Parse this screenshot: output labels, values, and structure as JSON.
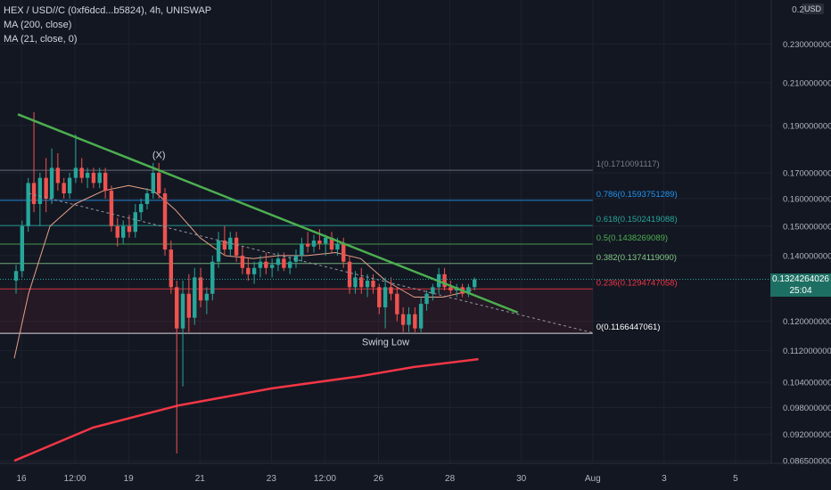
{
  "legend": {
    "symbol": "HEX / USD//C (0xf6dcd...b5824), 4h, UNISWAP",
    "ma200": "MA (200, close)",
    "ma21": "MA (21, close, 0)"
  },
  "axis": {
    "currency": "USD",
    "top_label": "0.2",
    "last_price": "0.1324264026",
    "countdown": "25:04"
  },
  "colors": {
    "background": "#131722",
    "up": "#26a69a",
    "down": "#ef5350",
    "trendline": "#4caf50",
    "ma200": "#f23645",
    "ma21": "#e8a08a"
  },
  "chart_data": {
    "type": "candlestick",
    "title": "HEX / USD//C (0xf6dcd...b5824), 4h, UNISWAP",
    "y_scale": "log",
    "ylim": [
      0.086,
      0.255
    ],
    "y_ticks": [
      0.23,
      0.21,
      0.19,
      0.17,
      0.16,
      0.15,
      0.14,
      0.12,
      0.112,
      0.104,
      0.098,
      0.092,
      0.0865
    ],
    "y_tick_labels": [
      "0.2300000000",
      "0.2100000000",
      "0.1900000000",
      "0.1700000000",
      "0.1600000000",
      "0.1500000000",
      "0.1400000000",
      "0.1200000000",
      "0.1120000000",
      "0.1040000000",
      "0.0980000000",
      "0.0920000000",
      "0.0865000000"
    ],
    "x_ticks": [
      {
        "label": "16",
        "day": 16
      },
      {
        "label": "12:00",
        "day": 17.5
      },
      {
        "label": "19",
        "day": 19
      },
      {
        "label": "21",
        "day": 21
      },
      {
        "label": "23",
        "day": 23
      },
      {
        "label": "12:00",
        "day": 24.5
      },
      {
        "label": "26",
        "day": 26
      },
      {
        "label": "28",
        "day": 28
      },
      {
        "label": "30",
        "day": 30
      },
      {
        "label": "Aug",
        "day": 32
      },
      {
        "label": "3",
        "day": 34
      },
      {
        "label": "5",
        "day": 36
      }
    ],
    "fib_levels": [
      {
        "label": "1(0.1710091117)",
        "value": 0.1710091117,
        "color": "#787b86"
      },
      {
        "label": "0.786(0.1593751289)",
        "value": 0.1593751289,
        "color": "#2196f3"
      },
      {
        "label": "0.618(0.1502419088)",
        "value": 0.1502419088,
        "color": "#26a69a"
      },
      {
        "label": "0.5(0.1438269089)",
        "value": 0.1438269089,
        "color": "#4caf50"
      },
      {
        "label": "0.382(0.1374119090)",
        "value": 0.137411909,
        "color": "#81c784"
      },
      {
        "label": "0.236(0.1294747058)",
        "value": 0.1294747058,
        "color": "#f23645"
      },
      {
        "label": "0(0.1166447061)",
        "value": 0.1166447061,
        "color": "#ffffff"
      }
    ],
    "annotations": [
      {
        "text": "(X)",
        "day": 19.85,
        "value": 0.176
      },
      {
        "text": "Swing Low",
        "day": 26.2,
        "value": 0.1135
      }
    ],
    "trendline": {
      "start": {
        "day": 15.9,
        "value": 0.195
      },
      "end": {
        "day": 29.9,
        "value": 0.1225
      }
    },
    "dotted_trend": {
      "start": {
        "day": 16.2,
        "value": 0.162
      },
      "end": {
        "day": 32.0,
        "value": 0.1168
      }
    },
    "ma200_points": [
      {
        "day": 15.8,
        "value": 0.0865
      },
      {
        "day": 18.0,
        "value": 0.0935
      },
      {
        "day": 20.4,
        "value": 0.0985
      },
      {
        "day": 23.0,
        "value": 0.1025
      },
      {
        "day": 25.5,
        "value": 0.1055
      },
      {
        "day": 27.0,
        "value": 0.1078
      },
      {
        "day": 28.8,
        "value": 0.1098
      }
    ],
    "ma21_points": [
      {
        "day": 15.8,
        "value": 0.11
      },
      {
        "day": 16.2,
        "value": 0.128
      },
      {
        "day": 16.8,
        "value": 0.15
      },
      {
        "day": 17.5,
        "value": 0.158
      },
      {
        "day": 18.3,
        "value": 0.163
      },
      {
        "day": 19.0,
        "value": 0.165
      },
      {
        "day": 19.7,
        "value": 0.163
      },
      {
        "day": 20.3,
        "value": 0.156
      },
      {
        "day": 21.0,
        "value": 0.146
      },
      {
        "day": 21.7,
        "value": 0.14
      },
      {
        "day": 22.5,
        "value": 0.139
      },
      {
        "day": 23.2,
        "value": 0.14
      },
      {
        "day": 24.0,
        "value": 0.14
      },
      {
        "day": 24.8,
        "value": 0.141
      },
      {
        "day": 25.5,
        "value": 0.139
      },
      {
        "day": 26.2,
        "value": 0.132
      },
      {
        "day": 27.0,
        "value": 0.127
      },
      {
        "day": 27.8,
        "value": 0.127
      },
      {
        "day": 28.6,
        "value": 0.129
      }
    ],
    "candles": [
      {
        "day": 15.85,
        "o": 0.132,
        "h": 0.137,
        "l": 0.128,
        "c": 0.135
      },
      {
        "day": 16.02,
        "o": 0.135,
        "h": 0.152,
        "l": 0.133,
        "c": 0.15
      },
      {
        "day": 16.19,
        "o": 0.15,
        "h": 0.168,
        "l": 0.148,
        "c": 0.166
      },
      {
        "day": 16.35,
        "o": 0.166,
        "h": 0.196,
        "l": 0.155,
        "c": 0.158
      },
      {
        "day": 16.52,
        "o": 0.158,
        "h": 0.17,
        "l": 0.15,
        "c": 0.168
      },
      {
        "day": 16.69,
        "o": 0.168,
        "h": 0.176,
        "l": 0.155,
        "c": 0.16
      },
      {
        "day": 16.85,
        "o": 0.16,
        "h": 0.18,
        "l": 0.158,
        "c": 0.172
      },
      {
        "day": 17.02,
        "o": 0.172,
        "h": 0.178,
        "l": 0.163,
        "c": 0.166
      },
      {
        "day": 17.19,
        "o": 0.166,
        "h": 0.168,
        "l": 0.16,
        "c": 0.162
      },
      {
        "day": 17.35,
        "o": 0.162,
        "h": 0.17,
        "l": 0.16,
        "c": 0.168
      },
      {
        "day": 17.52,
        "o": 0.168,
        "h": 0.186,
        "l": 0.166,
        "c": 0.172
      },
      {
        "day": 17.69,
        "o": 0.172,
        "h": 0.176,
        "l": 0.166,
        "c": 0.168
      },
      {
        "day": 17.85,
        "o": 0.168,
        "h": 0.172,
        "l": 0.164,
        "c": 0.17
      },
      {
        "day": 18.02,
        "o": 0.17,
        "h": 0.172,
        "l": 0.164,
        "c": 0.166
      },
      {
        "day": 18.19,
        "o": 0.166,
        "h": 0.172,
        "l": 0.164,
        "c": 0.17
      },
      {
        "day": 18.35,
        "o": 0.17,
        "h": 0.172,
        "l": 0.16,
        "c": 0.163
      },
      {
        "day": 18.52,
        "o": 0.163,
        "h": 0.165,
        "l": 0.148,
        "c": 0.15
      },
      {
        "day": 18.69,
        "o": 0.15,
        "h": 0.153,
        "l": 0.143,
        "c": 0.146
      },
      {
        "day": 18.85,
        "o": 0.146,
        "h": 0.152,
        "l": 0.144,
        "c": 0.15
      },
      {
        "day": 19.02,
        "o": 0.15,
        "h": 0.154,
        "l": 0.146,
        "c": 0.148
      },
      {
        "day": 19.19,
        "o": 0.148,
        "h": 0.158,
        "l": 0.146,
        "c": 0.155
      },
      {
        "day": 19.35,
        "o": 0.155,
        "h": 0.16,
        "l": 0.152,
        "c": 0.158
      },
      {
        "day": 19.52,
        "o": 0.158,
        "h": 0.164,
        "l": 0.156,
        "c": 0.162
      },
      {
        "day": 19.69,
        "o": 0.162,
        "h": 0.174,
        "l": 0.16,
        "c": 0.17
      },
      {
        "day": 19.85,
        "o": 0.17,
        "h": 0.174,
        "l": 0.16,
        "c": 0.162
      },
      {
        "day": 20.02,
        "o": 0.162,
        "h": 0.164,
        "l": 0.14,
        "c": 0.142
      },
      {
        "day": 20.19,
        "o": 0.142,
        "h": 0.145,
        "l": 0.128,
        "c": 0.13
      },
      {
        "day": 20.35,
        "o": 0.13,
        "h": 0.132,
        "l": 0.088,
        "c": 0.118
      },
      {
        "day": 20.52,
        "o": 0.118,
        "h": 0.132,
        "l": 0.103,
        "c": 0.128
      },
      {
        "day": 20.69,
        "o": 0.128,
        "h": 0.134,
        "l": 0.117,
        "c": 0.121
      },
      {
        "day": 20.85,
        "o": 0.121,
        "h": 0.136,
        "l": 0.119,
        "c": 0.133
      },
      {
        "day": 21.02,
        "o": 0.133,
        "h": 0.136,
        "l": 0.124,
        "c": 0.126
      },
      {
        "day": 21.19,
        "o": 0.126,
        "h": 0.13,
        "l": 0.122,
        "c": 0.128
      },
      {
        "day": 21.35,
        "o": 0.128,
        "h": 0.14,
        "l": 0.126,
        "c": 0.138
      },
      {
        "day": 21.52,
        "o": 0.138,
        "h": 0.148,
        "l": 0.136,
        "c": 0.145
      },
      {
        "day": 21.69,
        "o": 0.145,
        "h": 0.15,
        "l": 0.14,
        "c": 0.142
      },
      {
        "day": 21.85,
        "o": 0.142,
        "h": 0.148,
        "l": 0.14,
        "c": 0.146
      },
      {
        "day": 22.02,
        "o": 0.146,
        "h": 0.148,
        "l": 0.138,
        "c": 0.14
      },
      {
        "day": 22.19,
        "o": 0.14,
        "h": 0.143,
        "l": 0.134,
        "c": 0.136
      },
      {
        "day": 22.35,
        "o": 0.136,
        "h": 0.139,
        "l": 0.132,
        "c": 0.134
      },
      {
        "day": 22.52,
        "o": 0.134,
        "h": 0.138,
        "l": 0.131,
        "c": 0.136
      },
      {
        "day": 22.69,
        "o": 0.136,
        "h": 0.14,
        "l": 0.133,
        "c": 0.138
      },
      {
        "day": 22.85,
        "o": 0.138,
        "h": 0.141,
        "l": 0.134,
        "c": 0.136
      },
      {
        "day": 23.02,
        "o": 0.136,
        "h": 0.139,
        "l": 0.133,
        "c": 0.137
      },
      {
        "day": 23.19,
        "o": 0.137,
        "h": 0.141,
        "l": 0.135,
        "c": 0.139
      },
      {
        "day": 23.35,
        "o": 0.139,
        "h": 0.141,
        "l": 0.135,
        "c": 0.136
      },
      {
        "day": 23.52,
        "o": 0.136,
        "h": 0.14,
        "l": 0.134,
        "c": 0.138
      },
      {
        "day": 23.69,
        "o": 0.138,
        "h": 0.142,
        "l": 0.136,
        "c": 0.14
      },
      {
        "day": 23.85,
        "o": 0.14,
        "h": 0.146,
        "l": 0.138,
        "c": 0.144
      },
      {
        "day": 24.02,
        "o": 0.144,
        "h": 0.148,
        "l": 0.141,
        "c": 0.143
      },
      {
        "day": 24.19,
        "o": 0.143,
        "h": 0.147,
        "l": 0.141,
        "c": 0.145
      },
      {
        "day": 24.35,
        "o": 0.145,
        "h": 0.149,
        "l": 0.142,
        "c": 0.144
      },
      {
        "day": 24.52,
        "o": 0.144,
        "h": 0.147,
        "l": 0.14,
        "c": 0.146
      },
      {
        "day": 24.69,
        "o": 0.146,
        "h": 0.148,
        "l": 0.141,
        "c": 0.142
      },
      {
        "day": 24.85,
        "o": 0.142,
        "h": 0.146,
        "l": 0.14,
        "c": 0.144
      },
      {
        "day": 25.02,
        "o": 0.144,
        "h": 0.146,
        "l": 0.136,
        "c": 0.138
      },
      {
        "day": 25.19,
        "o": 0.138,
        "h": 0.14,
        "l": 0.128,
        "c": 0.13
      },
      {
        "day": 25.35,
        "o": 0.13,
        "h": 0.135,
        "l": 0.128,
        "c": 0.133
      },
      {
        "day": 25.52,
        "o": 0.133,
        "h": 0.136,
        "l": 0.128,
        "c": 0.13
      },
      {
        "day": 25.69,
        "o": 0.13,
        "h": 0.134,
        "l": 0.127,
        "c": 0.132
      },
      {
        "day": 25.85,
        "o": 0.132,
        "h": 0.134,
        "l": 0.128,
        "c": 0.13
      },
      {
        "day": 26.02,
        "o": 0.13,
        "h": 0.131,
        "l": 0.122,
        "c": 0.124
      },
      {
        "day": 26.19,
        "o": 0.124,
        "h": 0.133,
        "l": 0.118,
        "c": 0.13
      },
      {
        "day": 26.35,
        "o": 0.13,
        "h": 0.133,
        "l": 0.126,
        "c": 0.128
      },
      {
        "day": 26.52,
        "o": 0.128,
        "h": 0.13,
        "l": 0.12,
        "c": 0.122
      },
      {
        "day": 26.69,
        "o": 0.122,
        "h": 0.124,
        "l": 0.117,
        "c": 0.119
      },
      {
        "day": 26.85,
        "o": 0.119,
        "h": 0.124,
        "l": 0.117,
        "c": 0.122
      },
      {
        "day": 27.02,
        "o": 0.122,
        "h": 0.124,
        "l": 0.117,
        "c": 0.118
      },
      {
        "day": 27.19,
        "o": 0.118,
        "h": 0.127,
        "l": 0.117,
        "c": 0.125
      },
      {
        "day": 27.35,
        "o": 0.125,
        "h": 0.129,
        "l": 0.123,
        "c": 0.128
      },
      {
        "day": 27.52,
        "o": 0.128,
        "h": 0.131,
        "l": 0.126,
        "c": 0.13
      },
      {
        "day": 27.69,
        "o": 0.13,
        "h": 0.136,
        "l": 0.128,
        "c": 0.134
      },
      {
        "day": 27.85,
        "o": 0.134,
        "h": 0.136,
        "l": 0.129,
        "c": 0.13
      },
      {
        "day": 28.02,
        "o": 0.13,
        "h": 0.132,
        "l": 0.128,
        "c": 0.129
      },
      {
        "day": 28.19,
        "o": 0.129,
        "h": 0.131,
        "l": 0.127,
        "c": 0.13
      },
      {
        "day": 28.35,
        "o": 0.13,
        "h": 0.131,
        "l": 0.127,
        "c": 0.128
      },
      {
        "day": 28.52,
        "o": 0.128,
        "h": 0.131,
        "l": 0.127,
        "c": 0.13
      },
      {
        "day": 28.69,
        "o": 0.13,
        "h": 0.133,
        "l": 0.129,
        "c": 0.1324
      }
    ]
  }
}
